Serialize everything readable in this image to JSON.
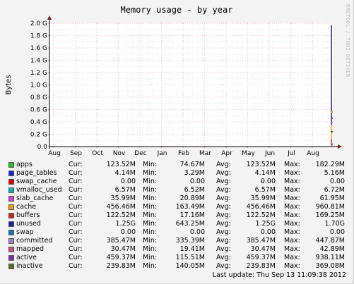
{
  "chart_data": {
    "type": "area",
    "title": "Memory usage - by year",
    "ylabel": "Bytes",
    "xlabel": "",
    "y_ticks": [
      "0.0",
      "0.2 G",
      "0.4 G",
      "0.6 G",
      "0.8 G",
      "1.0 G",
      "1.2 G",
      "1.4 G",
      "1.6 G",
      "1.8 G",
      "2.0 G"
    ],
    "x_ticks": [
      "Aug",
      "Sep",
      "Oct",
      "Nov",
      "Dec",
      "Jan",
      "Feb",
      "Mar",
      "Apr",
      "May",
      "Jun",
      "Jul",
      "Aug"
    ],
    "ylim": [
      0,
      2.0
    ],
    "grid": true,
    "watermark": "RRDTOOL / TOBI OETIKER",
    "column_labels": {
      "cur": "Cur:",
      "min": "Min:",
      "avg": "Avg:",
      "max": "Max:"
    },
    "series": [
      {
        "name": "apps",
        "color": "#22c222",
        "cur": "123.52M",
        "min": "74.67M",
        "avg": "123.52M",
        "max": "182.29M"
      },
      {
        "name": "page_tables",
        "color": "#1f1fd1",
        "cur": "4.14M",
        "min": "3.29M",
        "avg": "4.14M",
        "max": "5.16M"
      },
      {
        "name": "swap_cache",
        "color": "#e00000",
        "cur": "0.00",
        "min": "0.00",
        "avg": "0.00",
        "max": "0.00"
      },
      {
        "name": "vmalloc_used",
        "color": "#10b0b0",
        "cur": "6.57M",
        "min": "6.52M",
        "avg": "6.57M",
        "max": "6.72M"
      },
      {
        "name": "slab_cache",
        "color": "#d040d0",
        "cur": "35.99M",
        "min": "20.89M",
        "avg": "35.99M",
        "max": "61.95M"
      },
      {
        "name": "cache",
        "color": "#f0a000",
        "cur": "456.46M",
        "min": "163.49M",
        "avg": "456.46M",
        "max": "960.81M"
      },
      {
        "name": "buffers",
        "color": "#d02020",
        "cur": "122.52M",
        "min": "17.16M",
        "avg": "122.52M",
        "max": "169.25M"
      },
      {
        "name": "unused",
        "color": "#2020a0",
        "cur": "1.25G",
        "min": "643.25M",
        "avg": "1.25G",
        "max": "1.70G"
      },
      {
        "name": "swap",
        "color": "#2070b0",
        "cur": "0.00",
        "min": "0.00",
        "avg": "0.00",
        "max": "0.00"
      },
      {
        "name": "committed",
        "color": "#a080c0",
        "cur": "385.47M",
        "min": "335.39M",
        "avg": "385.47M",
        "max": "447.87M"
      },
      {
        "name": "mapped",
        "color": "#c05080",
        "cur": "30.47M",
        "min": "19.41M",
        "avg": "30.47M",
        "max": "42.89M"
      },
      {
        "name": "active",
        "color": "#8030a0",
        "cur": "459.37M",
        "min": "115.51M",
        "avg": "459.37M",
        "max": "938.11M"
      },
      {
        "name": "inactive",
        "color": "#507030",
        "cur": "239.83M",
        "min": "140.05M",
        "avg": "239.83M",
        "max": "369.08M"
      }
    ]
  },
  "footer": {
    "last_update": "Last update: Thu Sep 13 11:09:38 2012"
  }
}
